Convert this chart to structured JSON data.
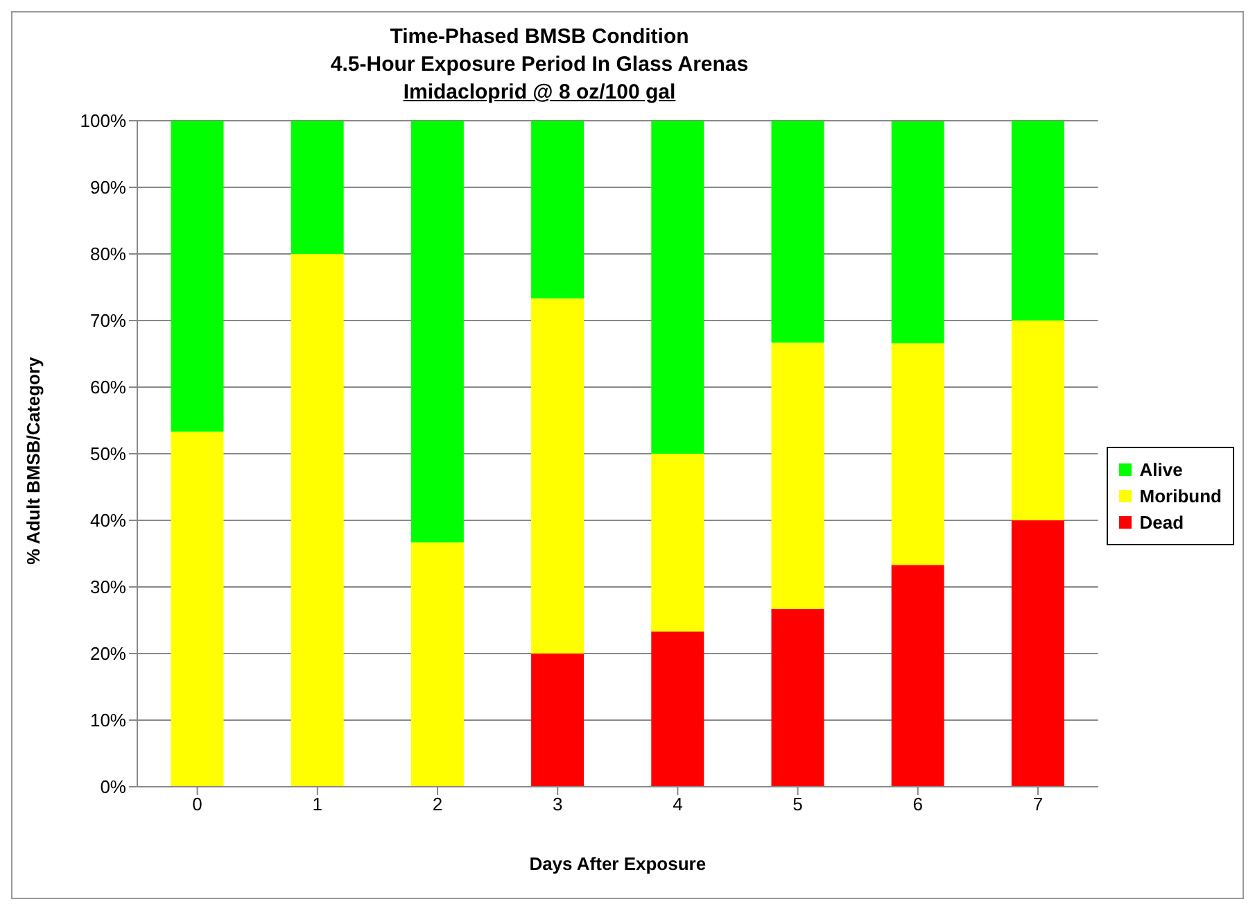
{
  "chart_data": {
    "type": "bar",
    "title": "Time-Phased BMSB Condition",
    "subtitle": "4.5-Hour Exposure Period In Glass Arenas",
    "annotations": [
      "Imidacloprid @ 8 oz/100 gal"
    ],
    "xlabel": "Days After Exposure",
    "ylabel": "% Adult BMSB/Category",
    "categories": [
      "0",
      "1",
      "2",
      "3",
      "4",
      "5",
      "6",
      "7"
    ],
    "stacked": true,
    "series": [
      {
        "name": "Dead",
        "color": "#ff0000",
        "values": [
          0,
          0,
          0,
          20,
          23.3,
          26.7,
          33.3,
          40
        ]
      },
      {
        "name": "Moribund",
        "color": "#ffff00",
        "values": [
          53.3,
          80,
          36.7,
          53.3,
          26.7,
          40,
          33.3,
          30
        ]
      },
      {
        "name": "Alive",
        "color": "#00ff00",
        "values": [
          46.7,
          20,
          63.3,
          26.7,
          50,
          33.3,
          33.3,
          30
        ]
      }
    ],
    "ylim": [
      0,
      100
    ],
    "yticks": [
      {
        "value": 0,
        "label": "0%"
      },
      {
        "value": 10,
        "label": "10%"
      },
      {
        "value": 20,
        "label": "20%"
      },
      {
        "value": 30,
        "label": "30%"
      },
      {
        "value": 40,
        "label": "40%"
      },
      {
        "value": 50,
        "label": "50%"
      },
      {
        "value": 60,
        "label": "60%"
      },
      {
        "value": 70,
        "label": "70%"
      },
      {
        "value": 80,
        "label": "80%"
      },
      {
        "value": 90,
        "label": "90%"
      },
      {
        "value": 100,
        "label": "100%"
      }
    ],
    "grid": "y",
    "legend": "right"
  }
}
